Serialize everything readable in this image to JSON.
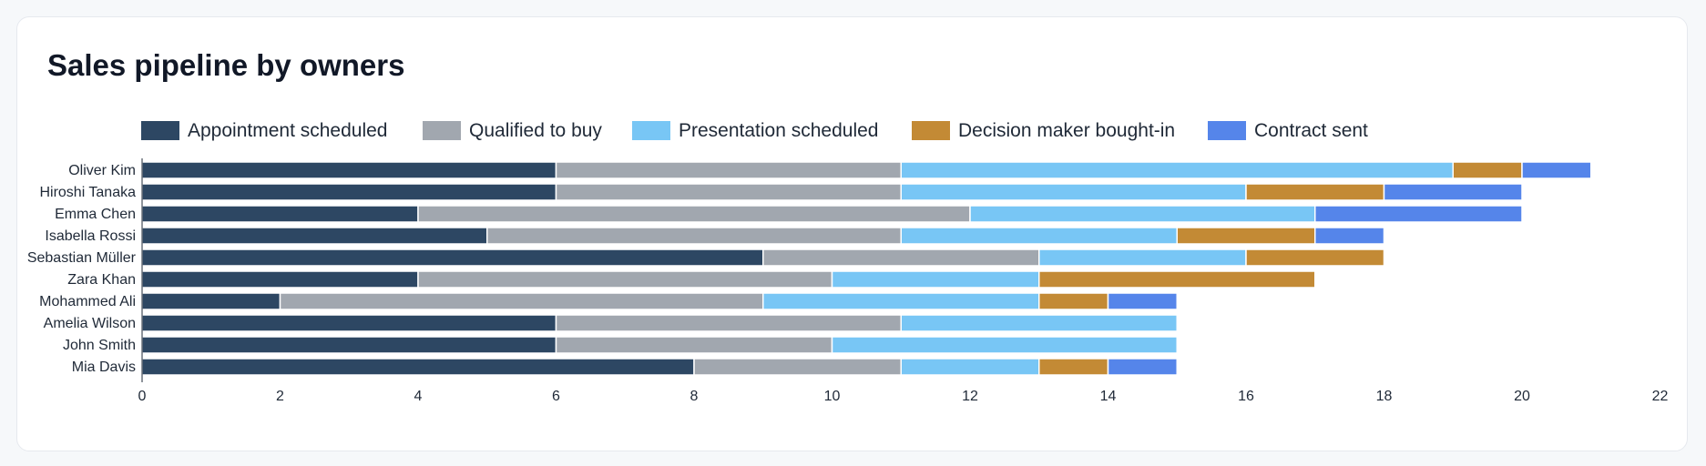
{
  "card": {
    "title": "Sales pipeline by owners"
  },
  "chart_data": {
    "type": "bar",
    "orientation": "horizontal",
    "stacked": true,
    "title": "Sales pipeline by owners",
    "categories": [
      "Oliver Kim",
      "Hiroshi Tanaka",
      "Emma Chen",
      "Isabella Rossi",
      "Sebastian Müller",
      "Zara Khan",
      "Mohammed Ali",
      "Amelia Wilson",
      "John Smith",
      "Mia Davis"
    ],
    "series": [
      {
        "name": "Appointment scheduled",
        "color": "#2d4763",
        "values": [
          6,
          6,
          4,
          5,
          9,
          4,
          2,
          6,
          6,
          8
        ]
      },
      {
        "name": "Qualified to buy",
        "color": "#a1a7af",
        "values": [
          5,
          5,
          8,
          6,
          4,
          6,
          7,
          5,
          4,
          3
        ]
      },
      {
        "name": "Presentation scheduled",
        "color": "#78c6f5",
        "values": [
          8,
          5,
          5,
          4,
          3,
          3,
          4,
          4,
          5,
          2
        ]
      },
      {
        "name": "Decision maker bought-in",
        "color": "#c38a35",
        "values": [
          1,
          2,
          0,
          2,
          2,
          4,
          1,
          0,
          0,
          1
        ]
      },
      {
        "name": "Contract sent",
        "color": "#5585ea",
        "values": [
          1,
          2,
          3,
          1,
          0,
          0,
          1,
          0,
          0,
          1
        ]
      }
    ],
    "xlim": [
      0,
      22
    ],
    "xticks": [
      0,
      2,
      4,
      6,
      8,
      10,
      12,
      14,
      16,
      18,
      20,
      22
    ],
    "xlabel": "",
    "ylabel": "",
    "grid": false,
    "legend_position": "top"
  }
}
